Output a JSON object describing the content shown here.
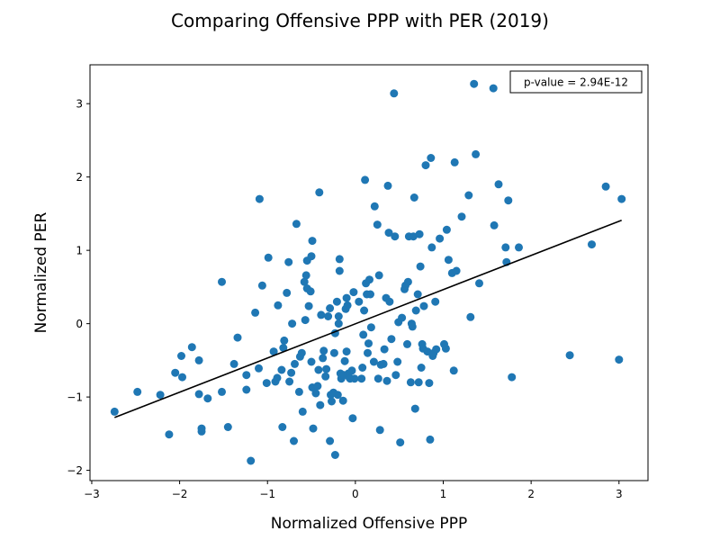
{
  "chart_data": {
    "type": "scatter",
    "title": "Comparing Offensive PPP with PER (2019)",
    "xlabel": "Normalized Offensive PPP",
    "ylabel": "Normalized PER",
    "xlim": [
      -3.02,
      3.33
    ],
    "ylim": [
      -2.14,
      3.53
    ],
    "xticks": [
      -3,
      -2,
      -1,
      0,
      1,
      2,
      3
    ],
    "yticks": [
      -2,
      -1,
      0,
      1,
      2,
      3
    ],
    "annotation": "p-value = 2.94E-12",
    "annotation_position": "top-right",
    "marker_color": "#1f77b4",
    "line_color": "#000000",
    "regression_line": {
      "x": [
        -2.74,
        3.03
      ],
      "y": [
        -1.28,
        1.41
      ]
    },
    "points": [
      [
        -2.74,
        -1.2
      ],
      [
        -2.48,
        -0.93
      ],
      [
        -2.22,
        -0.97
      ],
      [
        -2.12,
        -1.51
      ],
      [
        -2.05,
        -0.67
      ],
      [
        -1.98,
        -0.44
      ],
      [
        -1.97,
        -0.73
      ],
      [
        -1.86,
        -0.32
      ],
      [
        -1.78,
        -0.5
      ],
      [
        -1.78,
        -0.96
      ],
      [
        -1.75,
        -1.43
      ],
      [
        -1.75,
        -1.47
      ],
      [
        -1.68,
        -1.02
      ],
      [
        -1.52,
        0.57
      ],
      [
        -1.52,
        -0.93
      ],
      [
        -1.45,
        -1.41
      ],
      [
        -1.38,
        -0.55
      ],
      [
        -1.34,
        -0.19
      ],
      [
        -1.24,
        -0.7
      ],
      [
        -1.24,
        -0.9
      ],
      [
        -1.19,
        -1.87
      ],
      [
        -1.14,
        0.15
      ],
      [
        -1.1,
        -0.61
      ],
      [
        -1.09,
        1.7
      ],
      [
        -1.06,
        0.52
      ],
      [
        -1.01,
        -0.81
      ],
      [
        -0.99,
        0.9
      ],
      [
        -0.93,
        -0.38
      ],
      [
        -0.91,
        -0.79
      ],
      [
        -0.89,
        -0.74
      ],
      [
        -0.88,
        0.25
      ],
      [
        -0.84,
        -0.63
      ],
      [
        -0.83,
        -1.41
      ],
      [
        -0.82,
        -0.33
      ],
      [
        -0.81,
        -0.23
      ],
      [
        -0.78,
        0.42
      ],
      [
        -0.76,
        0.84
      ],
      [
        -0.75,
        -0.79
      ],
      [
        -0.73,
        -0.67
      ],
      [
        -0.72,
        0.0
      ],
      [
        -0.7,
        -1.6
      ],
      [
        -0.69,
        -0.55
      ],
      [
        -0.67,
        1.36
      ],
      [
        -0.64,
        -0.93
      ],
      [
        -0.63,
        -0.45
      ],
      [
        -0.61,
        -0.4
      ],
      [
        -0.6,
        -1.2
      ],
      [
        -0.58,
        0.57
      ],
      [
        -0.57,
        0.05
      ],
      [
        -0.56,
        0.66
      ],
      [
        -0.55,
        0.86
      ],
      [
        -0.55,
        0.48
      ],
      [
        -0.53,
        0.24
      ],
      [
        -0.51,
        0.44
      ],
      [
        -0.5,
        0.92
      ],
      [
        -0.5,
        -0.52
      ],
      [
        -0.49,
        1.13
      ],
      [
        -0.49,
        -0.87
      ],
      [
        -0.48,
        -1.43
      ],
      [
        -0.45,
        -0.95
      ],
      [
        -0.43,
        -0.85
      ],
      [
        -0.42,
        -0.63
      ],
      [
        -0.41,
        1.79
      ],
      [
        -0.4,
        -1.11
      ],
      [
        -0.39,
        0.12
      ],
      [
        -0.37,
        -0.47
      ],
      [
        -0.36,
        -0.37
      ],
      [
        -0.34,
        -0.72
      ],
      [
        -0.33,
        -0.62
      ],
      [
        -0.31,
        0.1
      ],
      [
        -0.29,
        0.21
      ],
      [
        -0.29,
        -1.6
      ],
      [
        -0.28,
        -0.97
      ],
      [
        -0.27,
        -1.06
      ],
      [
        -0.25,
        -0.94
      ],
      [
        -0.24,
        -0.4
      ],
      [
        -0.23,
        -1.79
      ],
      [
        -0.23,
        -0.13
      ],
      [
        -0.21,
        0.3
      ],
      [
        -0.2,
        -0.97
      ],
      [
        -0.19,
        0.0
      ],
      [
        -0.19,
        0.1
      ],
      [
        -0.18,
        0.88
      ],
      [
        -0.18,
        0.72
      ],
      [
        -0.17,
        -0.68
      ],
      [
        -0.16,
        -0.75
      ],
      [
        -0.14,
        -1.05
      ],
      [
        -0.13,
        -0.7
      ],
      [
        -0.12,
        -0.51
      ],
      [
        -0.11,
        0.2
      ],
      [
        -0.1,
        -0.38
      ],
      [
        -0.1,
        0.35
      ],
      [
        -0.09,
        0.25
      ],
      [
        -0.08,
        -0.68
      ],
      [
        -0.07,
        -0.73
      ],
      [
        -0.06,
        -0.75
      ],
      [
        -0.04,
        -0.64
      ],
      [
        -0.03,
        -1.29
      ],
      [
        -0.02,
        0.43
      ],
      [
        -0.01,
        -0.75
      ],
      [
        0.04,
        0.3
      ],
      [
        0.07,
        -0.75
      ],
      [
        0.08,
        -0.6
      ],
      [
        0.09,
        -0.15
      ],
      [
        0.1,
        0.18
      ],
      [
        0.11,
        1.96
      ],
      [
        0.12,
        0.55
      ],
      [
        0.13,
        0.4
      ],
      [
        0.14,
        -0.4
      ],
      [
        0.15,
        -0.27
      ],
      [
        0.16,
        0.6
      ],
      [
        0.17,
        0.4
      ],
      [
        0.18,
        -0.05
      ],
      [
        0.21,
        -0.52
      ],
      [
        0.22,
        1.6
      ],
      [
        0.25,
        1.35
      ],
      [
        0.26,
        -0.75
      ],
      [
        0.27,
        0.66
      ],
      [
        0.28,
        -1.45
      ],
      [
        0.29,
        -0.56
      ],
      [
        0.32,
        -0.55
      ],
      [
        0.33,
        -0.35
      ],
      [
        0.35,
        0.35
      ],
      [
        0.36,
        -0.78
      ],
      [
        0.37,
        1.88
      ],
      [
        0.38,
        1.24
      ],
      [
        0.39,
        0.3
      ],
      [
        0.41,
        -0.21
      ],
      [
        0.44,
        3.14
      ],
      [
        0.45,
        1.19
      ],
      [
        0.46,
        -0.7
      ],
      [
        0.48,
        -0.52
      ],
      [
        0.49,
        0.02
      ],
      [
        0.51,
        -1.62
      ],
      [
        0.53,
        0.08
      ],
      [
        0.56,
        0.47
      ],
      [
        0.57,
        0.52
      ],
      [
        0.59,
        -0.28
      ],
      [
        0.6,
        0.57
      ],
      [
        0.61,
        1.19
      ],
      [
        0.63,
        -0.8
      ],
      [
        0.64,
        0.0
      ],
      [
        0.65,
        -0.04
      ],
      [
        0.66,
        1.19
      ],
      [
        0.67,
        1.72
      ],
      [
        0.68,
        -1.16
      ],
      [
        0.69,
        0.18
      ],
      [
        0.71,
        0.4
      ],
      [
        0.72,
        -0.8
      ],
      [
        0.73,
        1.22
      ],
      [
        0.74,
        0.78
      ],
      [
        0.75,
        -0.6
      ],
      [
        0.76,
        -0.28
      ],
      [
        0.77,
        -0.34
      ],
      [
        0.78,
        0.24
      ],
      [
        0.8,
        2.16
      ],
      [
        0.82,
        -0.38
      ],
      [
        0.84,
        -0.81
      ],
      [
        0.85,
        -1.58
      ],
      [
        0.86,
        2.26
      ],
      [
        0.87,
        1.04
      ],
      [
        0.88,
        -0.44
      ],
      [
        0.89,
        -0.4
      ],
      [
        0.91,
        0.3
      ],
      [
        0.92,
        -0.35
      ],
      [
        0.96,
        1.16
      ],
      [
        1.01,
        -0.28
      ],
      [
        1.03,
        -0.34
      ],
      [
        1.04,
        1.28
      ],
      [
        1.06,
        0.87
      ],
      [
        1.1,
        0.69
      ],
      [
        1.12,
        -0.64
      ],
      [
        1.13,
        2.2
      ],
      [
        1.15,
        0.72
      ],
      [
        1.21,
        1.46
      ],
      [
        1.29,
        1.75
      ],
      [
        1.31,
        0.09
      ],
      [
        1.35,
        3.27
      ],
      [
        1.37,
        2.31
      ],
      [
        1.41,
        0.55
      ],
      [
        1.57,
        3.21
      ],
      [
        1.58,
        1.34
      ],
      [
        1.63,
        1.9
      ],
      [
        1.71,
        1.04
      ],
      [
        1.72,
        0.84
      ],
      [
        1.74,
        1.68
      ],
      [
        1.78,
        -0.73
      ],
      [
        1.86,
        1.04
      ],
      [
        2.44,
        -0.43
      ],
      [
        2.69,
        1.08
      ],
      [
        2.85,
        1.87
      ],
      [
        3.0,
        -0.49
      ],
      [
        3.03,
        1.7
      ]
    ]
  }
}
